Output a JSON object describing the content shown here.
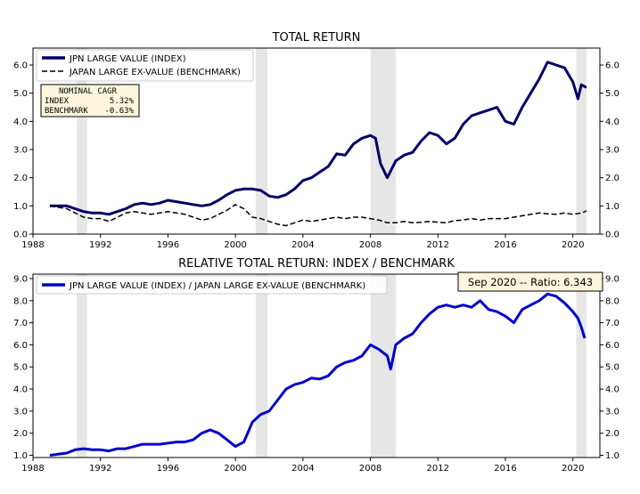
{
  "colors": {
    "index": "#000066",
    "benchmark": "#000000",
    "ratio": "#0000cc",
    "recession": "#e6e6e6",
    "box_bg": "#fdf5dc"
  },
  "chart_data": [
    {
      "type": "line",
      "title": "TOTAL RETURN",
      "xlim": [
        1988.0,
        2021.6
      ],
      "ylim": [
        0.0,
        6.6
      ],
      "xticks": [
        1988,
        1992,
        1996,
        2000,
        2004,
        2008,
        2012,
        2016,
        2020
      ],
      "yticks": [
        0.0,
        1.0,
        2.0,
        3.0,
        4.0,
        5.0,
        6.0
      ],
      "ytick_labels": [
        "0.0",
        "1.0",
        "2.0",
        "3.0",
        "4.0",
        "5.0",
        "6.0"
      ],
      "recessions": [
        [
          1990.6,
          1991.2
        ],
        [
          2001.2,
          2001.9
        ],
        [
          2008.0,
          2009.5
        ],
        [
          2020.2,
          2020.8
        ]
      ],
      "legend_position": "upper-left",
      "series": [
        {
          "name": "JPN LARGE VALUE (INDEX)",
          "style": "solid-thick",
          "x": [
            1989.0,
            1989.5,
            1990.0,
            1990.5,
            1991.0,
            1991.5,
            1992.0,
            1992.5,
            1993.0,
            1993.5,
            1994.0,
            1994.5,
            1995.0,
            1995.5,
            1996.0,
            1996.5,
            1997.0,
            1997.5,
            1998.0,
            1998.5,
            1999.0,
            1999.5,
            2000.0,
            2000.5,
            2001.0,
            2001.5,
            2002.0,
            2002.5,
            2003.0,
            2003.5,
            2004.0,
            2004.5,
            2005.0,
            2005.5,
            2006.0,
            2006.5,
            2007.0,
            2007.5,
            2008.0,
            2008.3,
            2008.6,
            2009.0,
            2009.5,
            2010.0,
            2010.5,
            2011.0,
            2011.5,
            2012.0,
            2012.5,
            2013.0,
            2013.5,
            2014.0,
            2014.5,
            2015.0,
            2015.5,
            2016.0,
            2016.5,
            2017.0,
            2017.5,
            2018.0,
            2018.5,
            2019.0,
            2019.5,
            2020.0,
            2020.3,
            2020.5,
            2020.8
          ],
          "y": [
            1.0,
            1.0,
            1.0,
            0.9,
            0.8,
            0.75,
            0.75,
            0.7,
            0.8,
            0.9,
            1.05,
            1.1,
            1.05,
            1.1,
            1.2,
            1.15,
            1.1,
            1.05,
            1.0,
            1.05,
            1.2,
            1.4,
            1.55,
            1.6,
            1.6,
            1.55,
            1.35,
            1.3,
            1.4,
            1.6,
            1.9,
            2.0,
            2.2,
            2.4,
            2.85,
            2.8,
            3.2,
            3.4,
            3.5,
            3.4,
            2.5,
            2.0,
            2.6,
            2.8,
            2.9,
            3.3,
            3.6,
            3.5,
            3.2,
            3.4,
            3.9,
            4.2,
            4.3,
            4.4,
            4.5,
            4.0,
            3.9,
            4.5,
            5.0,
            5.5,
            6.1,
            6.0,
            5.9,
            5.4,
            4.8,
            5.3,
            5.2
          ]
        },
        {
          "name": "JAPAN LARGE EX-VALUE (BENCHMARK)",
          "style": "dashed",
          "x": [
            1989.0,
            1989.5,
            1990.0,
            1990.5,
            1991.0,
            1991.5,
            1992.0,
            1992.5,
            1993.0,
            1993.5,
            1994.0,
            1994.5,
            1995.0,
            1995.5,
            1996.0,
            1996.5,
            1997.0,
            1997.5,
            1998.0,
            1998.5,
            1999.0,
            1999.5,
            2000.0,
            2000.5,
            2001.0,
            2001.5,
            2002.0,
            2002.5,
            2003.0,
            2003.5,
            2004.0,
            2004.5,
            2005.0,
            2005.5,
            2006.0,
            2006.5,
            2007.0,
            2007.5,
            2008.0,
            2008.5,
            2009.0,
            2009.5,
            2010.0,
            2010.5,
            2011.0,
            2011.5,
            2012.0,
            2012.5,
            2013.0,
            2013.5,
            2014.0,
            2014.5,
            2015.0,
            2015.5,
            2016.0,
            2016.5,
            2017.0,
            2017.5,
            2018.0,
            2018.5,
            2019.0,
            2019.5,
            2020.0,
            2020.5,
            2020.8
          ],
          "y": [
            1.0,
            0.95,
            0.9,
            0.75,
            0.6,
            0.55,
            0.55,
            0.45,
            0.6,
            0.75,
            0.8,
            0.75,
            0.7,
            0.75,
            0.8,
            0.75,
            0.7,
            0.6,
            0.5,
            0.55,
            0.7,
            0.85,
            1.05,
            0.9,
            0.6,
            0.55,
            0.45,
            0.35,
            0.3,
            0.4,
            0.5,
            0.45,
            0.5,
            0.55,
            0.6,
            0.55,
            0.6,
            0.6,
            0.55,
            0.5,
            0.4,
            0.4,
            0.45,
            0.4,
            0.42,
            0.45,
            0.42,
            0.4,
            0.48,
            0.5,
            0.55,
            0.5,
            0.55,
            0.55,
            0.55,
            0.6,
            0.65,
            0.7,
            0.75,
            0.72,
            0.7,
            0.75,
            0.7,
            0.75,
            0.82
          ]
        }
      ],
      "cagr_box": {
        "header": "NOMINAL CAGR",
        "rows": [
          {
            "label": "INDEX",
            "value": "5.32%"
          },
          {
            "label": "BENCHMARK",
            "value": "-0.63%"
          }
        ]
      }
    },
    {
      "type": "line",
      "title": "RELATIVE TOTAL RETURN: INDEX / BENCHMARK",
      "xlim": [
        1988.0,
        2021.6
      ],
      "ylim": [
        0.9,
        9.2
      ],
      "xticks": [
        1988,
        1992,
        1996,
        2000,
        2004,
        2008,
        2012,
        2016,
        2020
      ],
      "yticks": [
        1.0,
        2.0,
        3.0,
        4.0,
        5.0,
        6.0,
        7.0,
        8.0,
        9.0
      ],
      "ytick_labels": [
        "1.0",
        "2.0",
        "3.0",
        "4.0",
        "5.0",
        "6.0",
        "7.0",
        "8.0",
        "9.0"
      ],
      "recessions": [
        [
          1990.6,
          1991.2
        ],
        [
          2001.2,
          2001.9
        ],
        [
          2008.0,
          2009.5
        ],
        [
          2020.2,
          2020.8
        ]
      ],
      "legend_position": "upper-left",
      "annotation": "Sep 2020 -- Ratio: 6.343",
      "series": [
        {
          "name": "JPN LARGE VALUE (INDEX) / JAPAN LARGE EX-VALUE (BENCHMARK)",
          "style": "solid-thick",
          "x": [
            1989.0,
            1989.5,
            1990.0,
            1990.5,
            1991.0,
            1991.5,
            1992.0,
            1992.5,
            1993.0,
            1993.5,
            1994.0,
            1994.5,
            1995.0,
            1995.5,
            1996.0,
            1996.5,
            1997.0,
            1997.5,
            1998.0,
            1998.5,
            1999.0,
            1999.5,
            2000.0,
            2000.5,
            2001.0,
            2001.5,
            2002.0,
            2002.5,
            2003.0,
            2003.5,
            2004.0,
            2004.5,
            2005.0,
            2005.5,
            2006.0,
            2006.5,
            2007.0,
            2007.5,
            2008.0,
            2008.5,
            2009.0,
            2009.2,
            2009.5,
            2010.0,
            2010.5,
            2011.0,
            2011.5,
            2012.0,
            2012.5,
            2013.0,
            2013.5,
            2014.0,
            2014.5,
            2015.0,
            2015.5,
            2016.0,
            2016.5,
            2017.0,
            2017.5,
            2018.0,
            2018.5,
            2019.0,
            2019.5,
            2020.0,
            2020.3,
            2020.5,
            2020.7
          ],
          "y": [
            1.0,
            1.05,
            1.1,
            1.25,
            1.3,
            1.25,
            1.25,
            1.2,
            1.3,
            1.3,
            1.4,
            1.5,
            1.5,
            1.5,
            1.55,
            1.6,
            1.6,
            1.7,
            2.0,
            2.15,
            2.0,
            1.7,
            1.4,
            1.6,
            2.5,
            2.85,
            3.0,
            3.5,
            4.0,
            4.2,
            4.3,
            4.5,
            4.45,
            4.6,
            5.0,
            5.2,
            5.3,
            5.5,
            6.0,
            5.8,
            5.5,
            4.9,
            6.0,
            6.3,
            6.5,
            7.0,
            7.4,
            7.7,
            7.8,
            7.7,
            7.8,
            7.7,
            8.0,
            7.6,
            7.5,
            7.3,
            7.0,
            7.6,
            7.8,
            8.0,
            8.3,
            8.2,
            7.9,
            7.5,
            7.2,
            6.8,
            6.3
          ]
        }
      ]
    }
  ],
  "bottom_annotation_hidden": ""
}
